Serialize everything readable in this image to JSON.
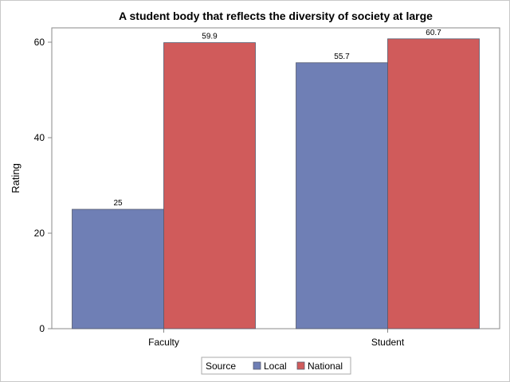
{
  "chart_data": {
    "type": "bar",
    "title": "A student body that reflects the diversity of society at large",
    "xlabel": "",
    "ylabel": "Rating",
    "categories": [
      "Faculty",
      "Student"
    ],
    "series": [
      {
        "name": "Local",
        "values": [
          25,
          55.7
        ],
        "value_labels": [
          "25",
          "55.7"
        ],
        "color": "#6f7fb5"
      },
      {
        "name": "National",
        "values": [
          59.9,
          60.7
        ],
        "value_labels": [
          "59.9",
          "60.7"
        ],
        "color": "#d05b5b"
      }
    ],
    "ylim": [
      0,
      63
    ],
    "yticks": [
      0,
      20,
      40,
      60
    ],
    "ytick_labels": [
      "0",
      "20",
      "40",
      "60"
    ],
    "legend": {
      "title": "Source",
      "position": "bottom-center"
    },
    "grid": false
  }
}
